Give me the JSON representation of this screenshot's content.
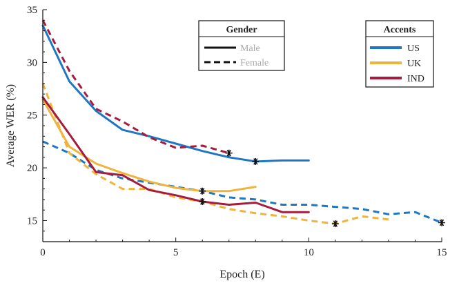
{
  "chart_data": {
    "type": "line",
    "xlabel": "Epoch (E)",
    "ylabel": "Average WER (%)",
    "xlim": [
      0,
      15
    ],
    "ylim": [
      13,
      35
    ],
    "xticks": [
      0,
      5,
      10,
      15
    ],
    "yticks": [
      15,
      20,
      25,
      30,
      35
    ],
    "grid": false,
    "legends": [
      {
        "title": "Gender",
        "placement": "top-center",
        "entries": [
          {
            "label": "Male",
            "style": "solid"
          },
          {
            "label": "Female",
            "style": "dashed"
          }
        ]
      },
      {
        "title": "Accents",
        "placement": "top-right",
        "entries": [
          {
            "label": "US",
            "color": "#1f77c4"
          },
          {
            "label": "UK",
            "color": "#f0b43c"
          },
          {
            "label": "IND",
            "color": "#a61c3c"
          }
        ]
      }
    ],
    "series": [
      {
        "accent": "US",
        "gender": "Male",
        "color": "#1f77c4",
        "style": "solid",
        "x": [
          0,
          1,
          2,
          3,
          4,
          5,
          6,
          7,
          8,
          9,
          10
        ],
        "y": [
          33.5,
          28.2,
          25.4,
          23.6,
          23.0,
          22.3,
          21.6,
          21.0,
          20.6,
          20.7,
          20.7
        ],
        "marker": {
          "x": 8,
          "y": 20.6
        }
      },
      {
        "accent": "US",
        "gender": "Female",
        "color": "#1f77c4",
        "style": "dashed",
        "x": [
          0,
          1,
          2,
          3,
          4,
          5,
          6,
          7,
          8,
          9,
          10,
          11,
          12,
          13,
          14,
          15
        ],
        "y": [
          22.5,
          21.4,
          19.8,
          19.0,
          18.6,
          18.2,
          17.8,
          17.2,
          17.0,
          16.5,
          16.5,
          16.3,
          16.1,
          15.6,
          15.8,
          14.8
        ],
        "marker": {
          "x": 15,
          "y": 14.8
        }
      },
      {
        "accent": "UK",
        "gender": "Male",
        "color": "#f0b43c",
        "style": "solid",
        "x": [
          0,
          1,
          2,
          3,
          4,
          5,
          6,
          7,
          8
        ],
        "y": [
          26.5,
          22.0,
          20.4,
          19.5,
          18.7,
          18.1,
          17.8,
          17.8,
          18.2
        ],
        "marker": {
          "x": 6,
          "y": 17.8
        }
      },
      {
        "accent": "UK",
        "gender": "Female",
        "color": "#f0b43c",
        "style": "dashed",
        "x": [
          0,
          1,
          2,
          3,
          4,
          5,
          6,
          7,
          8,
          9,
          10,
          11,
          12,
          13
        ],
        "y": [
          28.0,
          21.4,
          19.4,
          18.0,
          18.0,
          17.2,
          16.8,
          16.1,
          15.7,
          15.4,
          15.0,
          14.7,
          15.4,
          15.1
        ],
        "marker": {
          "x": 11,
          "y": 14.7
        }
      },
      {
        "accent": "IND",
        "gender": "Male",
        "color": "#a61c3c",
        "style": "solid",
        "x": [
          0,
          1,
          2,
          3,
          4,
          5,
          6,
          7,
          8,
          9,
          10
        ],
        "y": [
          26.7,
          23.2,
          19.6,
          19.3,
          17.9,
          17.4,
          16.8,
          16.5,
          16.7,
          15.8,
          15.8
        ],
        "marker": {
          "x": 6,
          "y": 16.8
        }
      },
      {
        "accent": "IND",
        "gender": "Female",
        "color": "#a61c3c",
        "style": "dashed",
        "x": [
          0,
          1,
          2,
          3,
          4,
          5,
          6,
          7
        ],
        "y": [
          34.0,
          29.2,
          25.6,
          24.4,
          22.9,
          21.9,
          22.1,
          21.4
        ],
        "marker": {
          "x": 7,
          "y": 21.4
        }
      }
    ]
  }
}
